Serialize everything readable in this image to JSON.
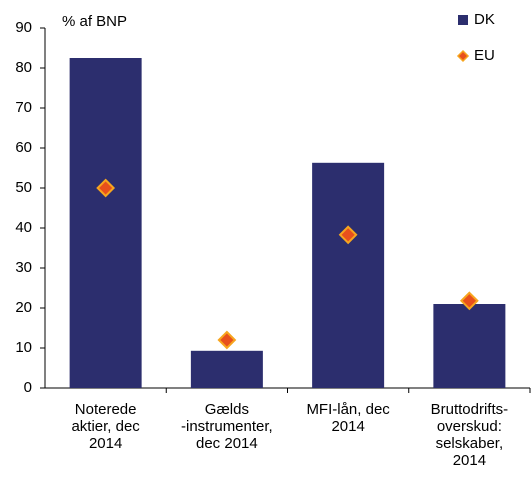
{
  "chart_data": {
    "type": "bar",
    "ylabel": "% af BNP",
    "categories": [
      "Noterede\naktier, dec\n2014",
      "Gælds\n-instrumenter,\ndec 2014",
      "MFI-lån, dec\n2014",
      "Bruttodrifts-\noverskud:\nselskaber,\n2014"
    ],
    "series": [
      {
        "name": "DK",
        "type": "bar",
        "color": "#2c2e6e",
        "values": [
          82.5,
          9.3,
          56.3,
          21
        ]
      },
      {
        "name": "EU",
        "type": "scatter",
        "color": "#e8501c",
        "edgecolor": "#f7a51e",
        "values": [
          50,
          12,
          38.3,
          21.8
        ]
      }
    ],
    "ylim": [
      0,
      90
    ],
    "yticks": [
      0,
      10,
      20,
      30,
      40,
      50,
      60,
      70,
      80,
      90
    ],
    "legend": "upper right"
  }
}
